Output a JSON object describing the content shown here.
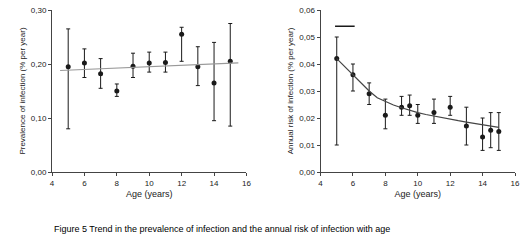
{
  "chart_data": [
    {
      "type": "scatter",
      "xlabel": "Age (years)",
      "ylabel": "Prevalence of infection (% per year)",
      "xlim": [
        4,
        16
      ],
      "xticks": [
        4,
        6,
        8,
        10,
        12,
        14,
        16
      ],
      "ylim": [
        0.0,
        0.3
      ],
      "yticks": [
        {
          "value": 0.0,
          "label": "0,00"
        },
        {
          "value": 0.1,
          "label": "0,10"
        },
        {
          "value": 0.2,
          "label": "0,20"
        },
        {
          "value": 0.3,
          "label": "0,30"
        }
      ],
      "grid": false,
      "series": [
        {
          "type": "scatter",
          "marker": "circle",
          "color": "#1a1a1a",
          "x": [
            5,
            6,
            7,
            8,
            9,
            10,
            11,
            12,
            13,
            14,
            15
          ],
          "values": [
            0.195,
            0.202,
            0.182,
            0.15,
            0.196,
            0.202,
            0.203,
            0.255,
            0.195,
            0.165,
            0.205
          ],
          "lower": [
            0.08,
            0.175,
            0.155,
            0.14,
            0.175,
            0.185,
            0.185,
            0.205,
            0.16,
            0.095,
            0.085
          ],
          "upper": [
            0.265,
            0.228,
            0.21,
            0.163,
            0.22,
            0.222,
            0.222,
            0.268,
            0.232,
            0.24,
            0.275
          ]
        },
        {
          "type": "line",
          "color": "#999999",
          "x": [
            4.5,
            15.5
          ],
          "values": [
            0.188,
            0.202
          ]
        }
      ]
    },
    {
      "type": "scatter",
      "xlabel": "Age (years)",
      "ylabel": "Annual risk of infection (% per year)",
      "xlim": [
        4,
        16
      ],
      "xticks": [
        4,
        6,
        8,
        10,
        12,
        14,
        16
      ],
      "ylim": [
        0.0,
        0.06
      ],
      "yticks": [
        {
          "value": 0.0,
          "label": "0,00"
        },
        {
          "value": 0.01,
          "label": "0,01"
        },
        {
          "value": 0.02,
          "label": "0,02"
        },
        {
          "value": 0.03,
          "label": "0,03"
        },
        {
          "value": 0.04,
          "label": "0,04"
        },
        {
          "value": 0.05,
          "label": "0,05"
        },
        {
          "value": 0.06,
          "label": "0,06"
        }
      ],
      "grid": false,
      "series": [
        {
          "type": "scatter",
          "marker": "circle",
          "color": "#1a1a1a",
          "x": [
            5,
            6,
            7,
            8,
            9,
            9.5,
            10,
            11,
            12,
            13,
            14,
            14.5,
            15
          ],
          "values": [
            0.042,
            0.036,
            0.029,
            0.021,
            0.024,
            0.0245,
            0.021,
            0.022,
            0.024,
            0.017,
            0.013,
            0.0155,
            0.015
          ],
          "lower": [
            0.01,
            0.03,
            0.025,
            0.016,
            0.021,
            0.021,
            0.018,
            0.018,
            0.021,
            0.01,
            0.008,
            0.009,
            0.008
          ],
          "upper": [
            0.05,
            0.04,
            0.033,
            0.027,
            0.028,
            0.0285,
            0.025,
            0.027,
            0.028,
            0.024,
            0.02,
            0.022,
            0.022
          ]
        },
        {
          "type": "line",
          "color": "#444444",
          "x": [
            5.0,
            5.5,
            6.0,
            6.5,
            7.0,
            7.5,
            8.0,
            8.5,
            9.0,
            9.5,
            10.0,
            10.5,
            11.0,
            11.5,
            12.0,
            12.5,
            13.0,
            13.5,
            14.0,
            14.5,
            15.0
          ],
          "values": [
            0.042,
            0.039,
            0.036,
            0.033,
            0.03,
            0.0275,
            0.026,
            0.0248,
            0.0238,
            0.0228,
            0.022,
            0.0213,
            0.0207,
            0.02,
            0.0195,
            0.019,
            0.0185,
            0.018,
            0.0175,
            0.017,
            0.0165
          ]
        },
        {
          "type": "scatter",
          "marker": "line-ew",
          "color": "#1a1a1a",
          "x": [
            5.5
          ],
          "values": [
            0.054
          ]
        }
      ]
    }
  ],
  "caption": "Figure 5 Trend in the prevalence of infection and the annual risk of infection with age"
}
